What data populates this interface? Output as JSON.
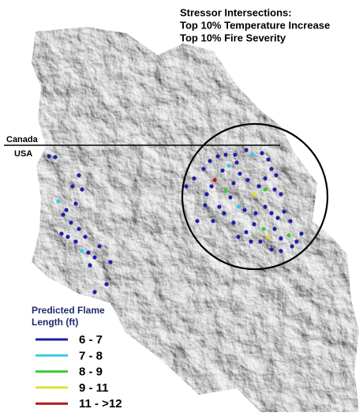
{
  "title": [
    "Stressor Intersections:",
    "Top 10% Temperature Increase",
    "Top 10% Fire Severity"
  ],
  "border_labels": {
    "north": "Canada",
    "south": "USA"
  },
  "legend": {
    "title": [
      "Predicted Flame",
      "Length (ft)"
    ],
    "items": [
      {
        "label": "6 - 7",
        "color": "#1f1fa8"
      },
      {
        "label": "7 - 8",
        "color": "#3cc8e8"
      },
      {
        "label": "8 - 9",
        "color": "#3cc83c"
      },
      {
        "label": "9 - 11",
        "color": "#e0e030"
      },
      {
        "label": "11 - >12",
        "color": "#b01818"
      }
    ]
  }
}
